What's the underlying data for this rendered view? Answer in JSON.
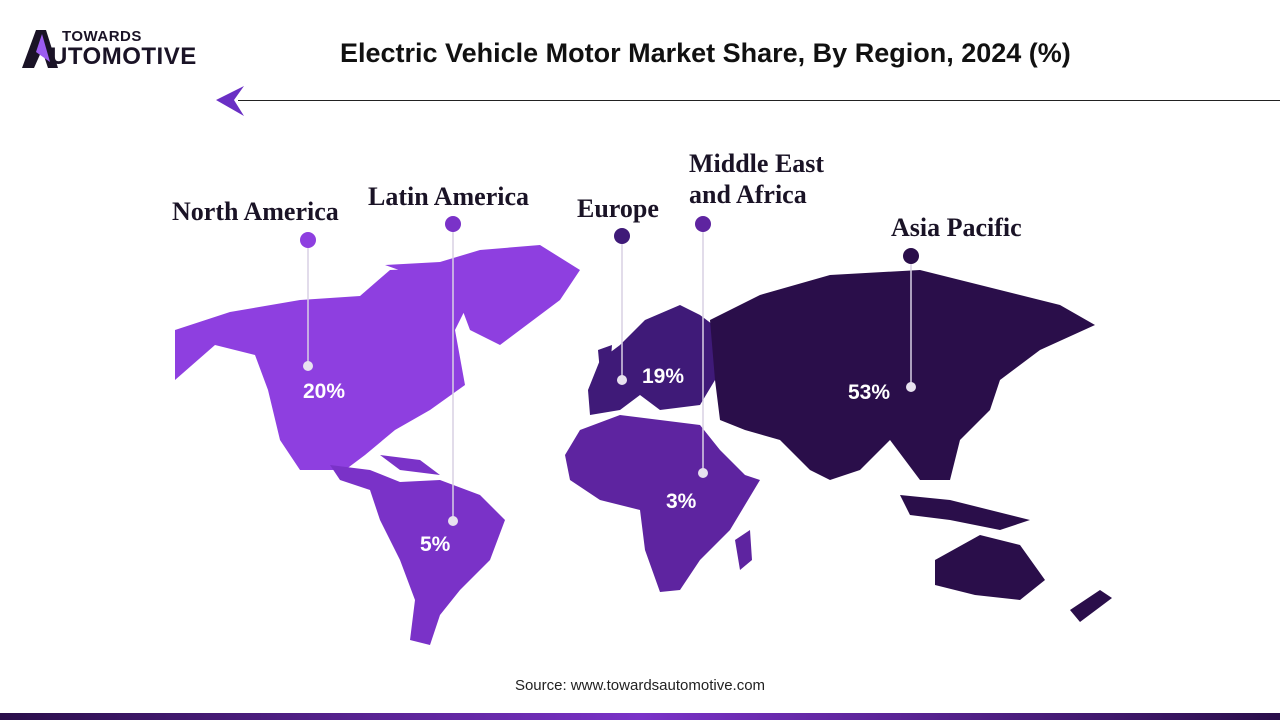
{
  "logo": {
    "line1": "TOWARDS",
    "line2": "UTOMOTIVE",
    "full": "TOWARDS AUTOMOTIVE"
  },
  "title": "Electric Vehicle Motor Market Share, By Region, 2024 (%)",
  "regions": [
    {
      "name": "North America",
      "value": "20%",
      "color": "#8e3fe0"
    },
    {
      "name": "Latin America",
      "value": "5%",
      "color": "#7a32c8"
    },
    {
      "name": "Europe",
      "value": "19%",
      "color": "#3f1a78"
    },
    {
      "name": "Middle East and Africa",
      "line1": "Middle East",
      "line2": "and Africa",
      "value": "3%",
      "color": "#5e24a0"
    },
    {
      "name": "Asia Pacific",
      "value": "53%",
      "color": "#2a0e4a"
    }
  ],
  "source": "Source: www.towardsautomotive.com"
}
